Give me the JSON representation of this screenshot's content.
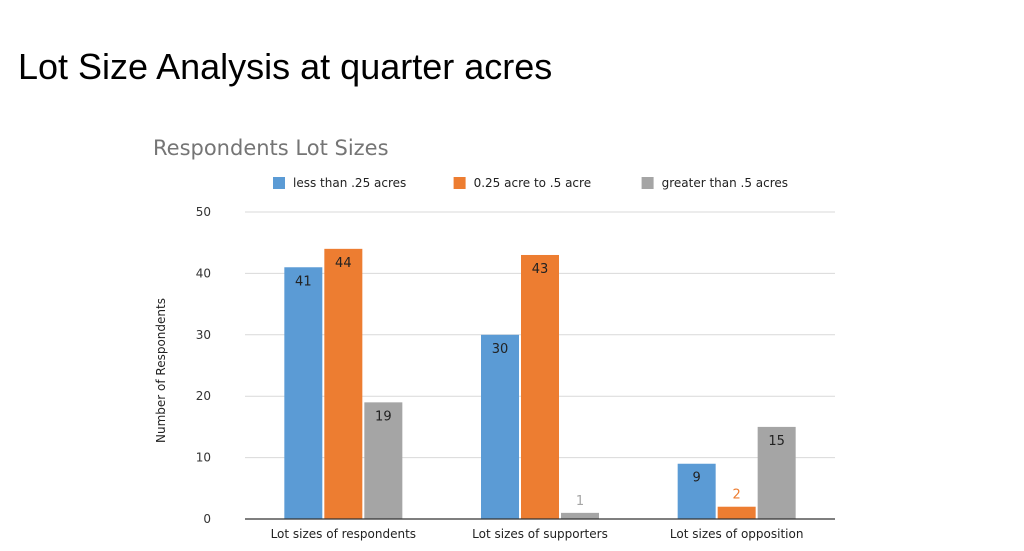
{
  "slide": {
    "title": "Lot Size Analysis at quarter acres"
  },
  "chart_data": {
    "type": "bar",
    "title": "Respondents Lot Sizes",
    "xlabel": "",
    "ylabel": "Number of Respondents",
    "ylim": [
      0,
      50
    ],
    "yticks": [
      0,
      10,
      20,
      30,
      40,
      50
    ],
    "grid": true,
    "legend_position": "top",
    "categories": [
      "Lot sizes of respondents",
      "Lot sizes of supporters",
      "Lot sizes of opposition"
    ],
    "series": [
      {
        "name": "less than .25 acres",
        "color": "#5b9bd5",
        "values": [
          41,
          30,
          9
        ]
      },
      {
        "name": "0.25 acre to .5 acre",
        "color": "#ed7d31",
        "values": [
          44,
          43,
          2
        ]
      },
      {
        "name": "greater than .5 acres",
        "color": "#a5a5a5",
        "values": [
          19,
          1,
          15
        ]
      }
    ]
  }
}
